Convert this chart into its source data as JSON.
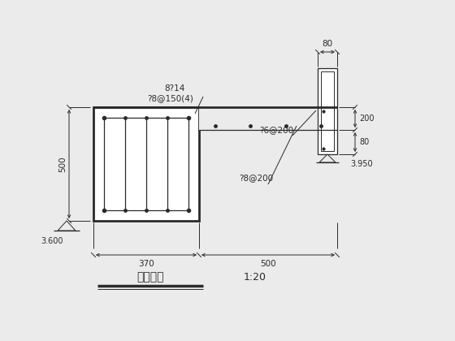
{
  "bg_color": "#ebebeb",
  "line_color": "#2a2a2a",
  "title": "雨篷详图",
  "scale": "1:20",
  "label_3600": "3.600",
  "label_3950": "3.950",
  "label_500h": "500",
  "label_370": "370",
  "label_500w": "500",
  "label_80": "80",
  "label_200": "200",
  "label_80b": "80",
  "ann_8phi14": "8?14",
  "ann_phi8_150": "?8@150(4)",
  "ann_phi6_200": "?6@200",
  "ann_phi8_200": "?8@200"
}
